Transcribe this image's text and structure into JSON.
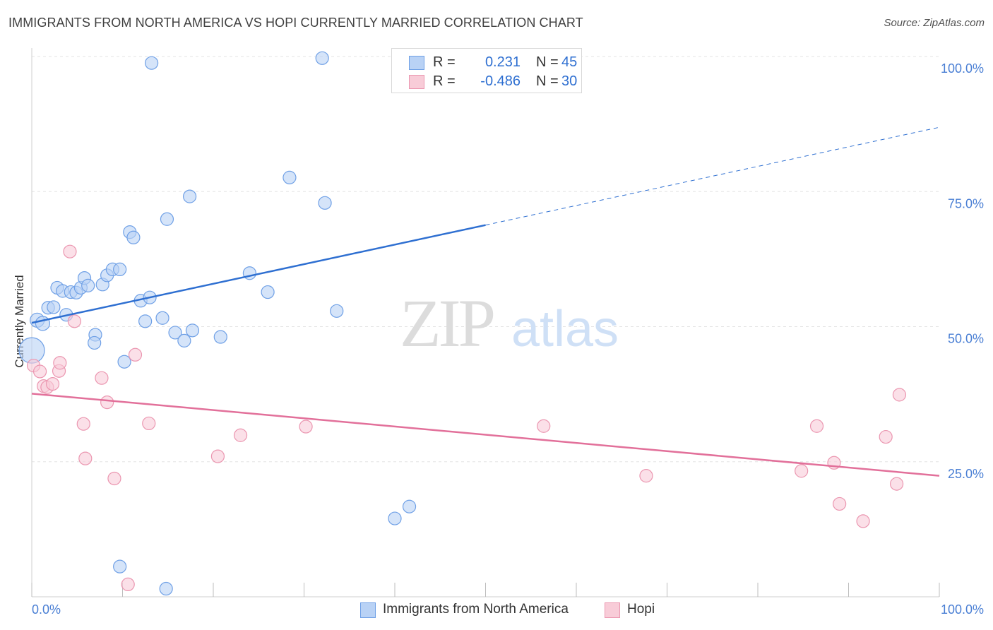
{
  "header": {
    "title": "IMMIGRANTS FROM NORTH AMERICA VS HOPI CURRENTLY MARRIED CORRELATION CHART",
    "source": "Source: ZipAtlas.com"
  },
  "watermark": {
    "zip": "ZIP",
    "atlas": "atlas"
  },
  "legend": {
    "rows": [
      {
        "r_label": "R =",
        "r_value": "0.231",
        "n_label": "N =",
        "n_value": "45"
      },
      {
        "r_label": "R =",
        "r_value": "-0.486",
        "n_label": "N =",
        "n_value": "30"
      }
    ]
  },
  "chart_data": {
    "type": "scatter",
    "title": "IMMIGRANTS FROM NORTH AMERICA VS HOPI CURRENTLY MARRIED CORRELATION CHART",
    "xlabel": "",
    "ylabel": "Currently Married",
    "xlim": [
      0,
      100
    ],
    "ylim": [
      0,
      100
    ],
    "x_tick_labels": [
      "0.0%",
      "100.0%"
    ],
    "y_tick_labels": [
      {
        "value": 100,
        "label": "100.0%"
      },
      {
        "value": 75,
        "label": "75.0%"
      },
      {
        "value": 50,
        "label": "50.0%"
      },
      {
        "value": 25,
        "label": "25.0%"
      }
    ],
    "grid": true,
    "legend_position": "bottom",
    "series": [
      {
        "name": "Immigrants from North America",
        "color": "#6fa0e6",
        "fill": "#b9d2f5",
        "r": 0.231,
        "n": 45,
        "trend": {
          "x0": 0,
          "y0": 50.7,
          "x1": 50,
          "y1": 68.8,
          "dashed_to_x": 100,
          "dashed_to_y": 86.9
        },
        "points": [
          [
            0.6,
            51.2,
            10
          ],
          [
            1.2,
            50.6,
            10
          ],
          [
            0.0,
            45.6,
            18
          ],
          [
            1.8,
            53.5,
            9
          ],
          [
            2.4,
            53.6,
            9
          ],
          [
            2.8,
            57.2,
            9
          ],
          [
            3.4,
            56.6,
            9
          ],
          [
            4.3,
            56.4,
            9
          ],
          [
            4.9,
            56.3,
            9
          ],
          [
            5.4,
            57.2,
            9
          ],
          [
            5.8,
            59.0,
            9
          ],
          [
            6.2,
            57.6,
            9
          ],
          [
            3.8,
            52.2,
            9
          ],
          [
            7.0,
            48.5,
            9
          ],
          [
            6.9,
            47.0,
            9
          ],
          [
            7.8,
            57.8,
            9
          ],
          [
            8.3,
            59.5,
            9
          ],
          [
            8.9,
            60.6,
            9
          ],
          [
            9.7,
            60.6,
            9
          ],
          [
            10.2,
            43.5,
            9
          ],
          [
            10.8,
            67.5,
            9
          ],
          [
            11.2,
            66.5,
            9
          ],
          [
            12.0,
            54.8,
            9
          ],
          [
            12.5,
            51.0,
            9
          ],
          [
            13.0,
            55.4,
            9
          ],
          [
            14.4,
            51.6,
            9
          ],
          [
            14.9,
            69.9,
            9
          ],
          [
            15.8,
            48.9,
            9
          ],
          [
            16.8,
            47.4,
            9
          ],
          [
            17.4,
            74.1,
            9
          ],
          [
            17.7,
            49.3,
            9
          ],
          [
            20.8,
            48.1,
            9
          ],
          [
            24.0,
            59.9,
            9
          ],
          [
            26.0,
            56.4,
            9
          ],
          [
            28.4,
            77.6,
            9
          ],
          [
            32.3,
            72.9,
            9
          ],
          [
            33.6,
            52.9,
            9
          ],
          [
            40.0,
            14.5,
            9
          ],
          [
            41.6,
            16.7,
            9
          ],
          [
            9.7,
            5.6,
            9
          ],
          [
            14.8,
            1.5,
            9
          ],
          [
            13.2,
            98.8,
            9
          ],
          [
            32.0,
            99.7,
            9
          ],
          [
            46.9,
            99.9,
            9
          ],
          [
            50.0,
            99.8,
            9
          ]
        ]
      },
      {
        "name": "Hopi",
        "color": "#eb96b0",
        "fill": "#f8ccd8",
        "r": -0.486,
        "n": 30,
        "trend": {
          "x0": 0,
          "y0": 37.6,
          "x1": 100,
          "y1": 22.4
        },
        "points": [
          [
            0.2,
            42.8,
            9
          ],
          [
            0.9,
            41.7,
            9
          ],
          [
            1.3,
            39.0,
            9
          ],
          [
            1.7,
            38.8,
            9
          ],
          [
            2.3,
            39.4,
            9
          ],
          [
            3.0,
            41.8,
            9
          ],
          [
            3.1,
            43.3,
            9
          ],
          [
            4.2,
            63.9,
            9
          ],
          [
            4.7,
            51.0,
            9
          ],
          [
            5.7,
            32.0,
            9
          ],
          [
            5.9,
            25.6,
            9
          ],
          [
            7.7,
            40.5,
            9
          ],
          [
            8.3,
            36.0,
            9
          ],
          [
            9.1,
            21.9,
            9
          ],
          [
            10.6,
            2.3,
            9
          ],
          [
            11.4,
            44.8,
            9
          ],
          [
            12.9,
            32.1,
            9
          ],
          [
            20.5,
            26.0,
            9
          ],
          [
            23.0,
            29.9,
            9
          ],
          [
            30.2,
            31.5,
            9
          ],
          [
            56.4,
            31.6,
            9
          ],
          [
            67.7,
            22.4,
            9
          ],
          [
            84.8,
            23.3,
            9
          ],
          [
            86.5,
            31.6,
            9
          ],
          [
            88.4,
            24.8,
            9
          ],
          [
            89.0,
            17.2,
            9
          ],
          [
            91.6,
            14.0,
            9
          ],
          [
            94.1,
            29.6,
            9
          ],
          [
            95.3,
            20.9,
            9
          ],
          [
            95.6,
            37.4,
            9
          ]
        ]
      }
    ]
  }
}
